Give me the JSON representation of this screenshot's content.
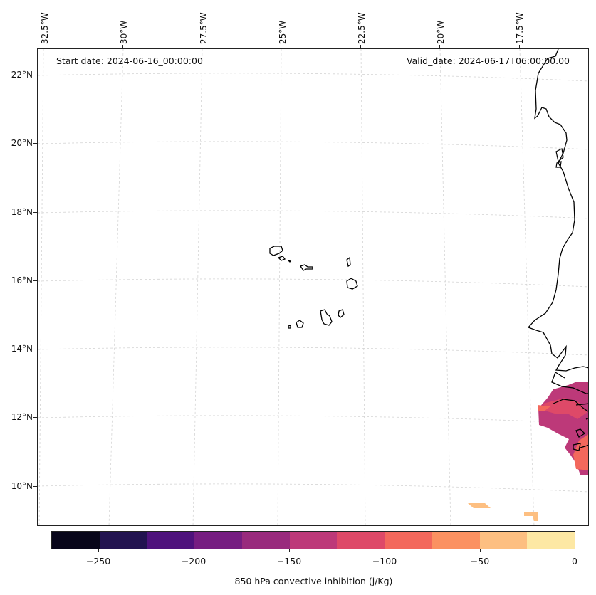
{
  "map": {
    "start_date": "Start date: 2024-06-16_00:00:00",
    "valid_date": "Valid_date: 2024-06-17T06:00:00.00",
    "lon_labels": [
      "32.5°W",
      "30°W",
      "27.5°W",
      "25°W",
      "22.5°W",
      "20°W",
      "17.5°W"
    ],
    "lat_labels": [
      "22°N",
      "20°N",
      "18°N",
      "16°N",
      "14°N",
      "12°N",
      "10°N"
    ]
  },
  "colorbar": {
    "label": "850 hPa convective inhibition (j/Kg)",
    "ticks": [
      "−250",
      "−200",
      "−150",
      "−100",
      "−50",
      "0"
    ],
    "colors": [
      "#08061a",
      "#221350",
      "#4e127c",
      "#761d81",
      "#992a7d",
      "#bd3979",
      "#de4968",
      "#f3685c",
      "#fb9161",
      "#fdbf81",
      "#fde8a4"
    ]
  }
}
